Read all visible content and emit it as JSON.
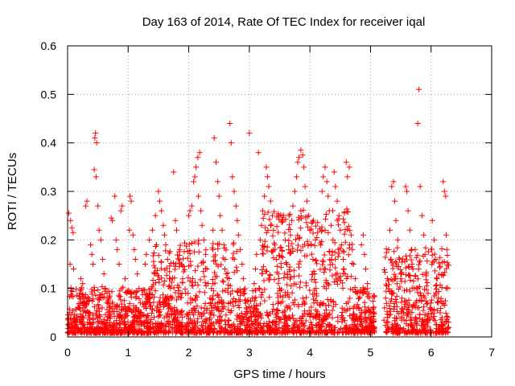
{
  "chart_data": {
    "type": "scatter",
    "title": "Day 163 of 2014, Rate Of TEC Index for receiver iqal",
    "xlabel": "GPS time / hours",
    "ylabel": "ROTI / TECUs",
    "xlim": [
      0,
      7
    ],
    "ylim": [
      0,
      0.6
    ],
    "x_ticks": [
      0,
      1,
      2,
      3,
      4,
      5,
      6,
      7
    ],
    "x_tick_labels": [
      "0",
      "1",
      "2",
      "3",
      "4",
      "5",
      "6",
      "7"
    ],
    "y_ticks": [
      0,
      0.1,
      0.2,
      0.3,
      0.4,
      0.5,
      0.6
    ],
    "y_tick_labels": [
      "0",
      "0.1",
      "0.2",
      "0.3",
      "0.4",
      "0.5",
      "0.6"
    ],
    "grid": true,
    "marker": "+",
    "color": "#ff0000",
    "series": [
      {
        "name": "ROTI",
        "points": [
          [
            0.02,
            0.255
          ],
          [
            0.05,
            0.24
          ],
          [
            0.07,
            0.225
          ],
          [
            0.09,
            0.215
          ],
          [
            0.04,
            0.15
          ],
          [
            0.1,
            0.14
          ],
          [
            0.03,
            0.05
          ],
          [
            0.06,
            0.03
          ],
          [
            0.08,
            0.02
          ],
          [
            0.12,
            0.01
          ],
          [
            0.15,
            0.04
          ],
          [
            0.18,
            0.06
          ],
          [
            0.2,
            0.09
          ],
          [
            0.22,
            0.12
          ],
          [
            0.25,
            0.11
          ],
          [
            0.28,
            0.08
          ],
          [
            0.3,
            0.05
          ],
          [
            0.33,
            0.03
          ],
          [
            0.3,
            0.27
          ],
          [
            0.32,
            0.28
          ],
          [
            0.38,
            0.19
          ],
          [
            0.4,
            0.17
          ],
          [
            0.42,
            0.15
          ],
          [
            0.45,
            0.41
          ],
          [
            0.46,
            0.42
          ],
          [
            0.48,
            0.4
          ],
          [
            0.44,
            0.345
          ],
          [
            0.47,
            0.33
          ],
          [
            0.5,
            0.27
          ],
          [
            0.52,
            0.22
          ],
          [
            0.55,
            0.2
          ],
          [
            0.58,
            0.16
          ],
          [
            0.6,
            0.13
          ],
          [
            0.62,
            0.1
          ],
          [
            0.65,
            0.07
          ],
          [
            0.68,
            0.05
          ],
          [
            0.7,
            0.03
          ],
          [
            0.72,
            0.245
          ],
          [
            0.74,
            0.24
          ],
          [
            0.78,
            0.29
          ],
          [
            0.8,
            0.2
          ],
          [
            0.82,
            0.18
          ],
          [
            0.85,
            0.15
          ],
          [
            0.88,
            0.26
          ],
          [
            0.9,
            0.27
          ],
          [
            0.95,
            0.12
          ],
          [
            0.98,
            0.09
          ],
          [
            1.0,
            0.06
          ],
          [
            1.03,
            0.29
          ],
          [
            1.05,
            0.28
          ],
          [
            1.02,
            0.22
          ],
          [
            1.08,
            0.21
          ],
          [
            1.1,
            0.18
          ],
          [
            1.12,
            0.16
          ],
          [
            1.15,
            0.13
          ],
          [
            1.18,
            0.1
          ],
          [
            1.2,
            0.07
          ],
          [
            1.22,
            0.05
          ],
          [
            1.25,
            0.03
          ],
          [
            1.28,
            0.15
          ],
          [
            1.3,
            0.17
          ],
          [
            1.35,
            0.2
          ],
          [
            1.4,
            0.22
          ],
          [
            1.45,
            0.25
          ],
          [
            1.5,
            0.3
          ],
          [
            1.52,
            0.28
          ],
          [
            1.55,
            0.26
          ],
          [
            1.58,
            0.23
          ],
          [
            1.6,
            0.21
          ],
          [
            1.62,
            0.19
          ],
          [
            1.65,
            0.16
          ],
          [
            1.68,
            0.12
          ],
          [
            1.7,
            0.1
          ],
          [
            1.72,
            0.08
          ],
          [
            1.75,
            0.34
          ],
          [
            1.78,
            0.24
          ],
          [
            1.8,
            0.22
          ],
          [
            1.85,
            0.18
          ],
          [
            1.88,
            0.15
          ],
          [
            1.9,
            0.12
          ],
          [
            1.95,
            0.09
          ],
          [
            1.98,
            0.07
          ],
          [
            2.0,
            0.25
          ],
          [
            2.02,
            0.26
          ],
          [
            2.05,
            0.27
          ],
          [
            2.08,
            0.32
          ],
          [
            2.1,
            0.33
          ],
          [
            2.12,
            0.35
          ],
          [
            2.15,
            0.37
          ],
          [
            2.18,
            0.38
          ],
          [
            2.16,
            0.29
          ],
          [
            2.2,
            0.26
          ],
          [
            2.22,
            0.23
          ],
          [
            2.25,
            0.2
          ],
          [
            2.28,
            0.17
          ],
          [
            2.3,
            0.14
          ],
          [
            2.32,
            0.11
          ],
          [
            2.35,
            0.08
          ],
          [
            2.38,
            0.05
          ],
          [
            2.4,
            0.22
          ],
          [
            2.42,
            0.41
          ],
          [
            2.45,
            0.36
          ],
          [
            2.48,
            0.32
          ],
          [
            2.5,
            0.29
          ],
          [
            2.52,
            0.25
          ],
          [
            2.55,
            0.22
          ],
          [
            2.58,
            0.19
          ],
          [
            2.6,
            0.16
          ],
          [
            2.62,
            0.13
          ],
          [
            2.65,
            0.1
          ],
          [
            2.68,
            0.44
          ],
          [
            2.7,
            0.4
          ],
          [
            2.72,
            0.33
          ],
          [
            2.75,
            0.3
          ],
          [
            2.78,
            0.27
          ],
          [
            2.8,
            0.24
          ],
          [
            2.82,
            0.21
          ],
          [
            2.85,
            0.18
          ],
          [
            2.88,
            0.15
          ],
          [
            2.9,
            0.12
          ],
          [
            2.92,
            0.09
          ],
          [
            2.95,
            0.06
          ],
          [
            3.0,
            0.42
          ],
          [
            3.02,
            0.05
          ],
          [
            3.05,
            0.08
          ],
          [
            3.08,
            0.11
          ],
          [
            3.1,
            0.14
          ],
          [
            3.12,
            0.17
          ],
          [
            3.15,
            0.38
          ],
          [
            3.18,
            0.2
          ],
          [
            3.2,
            0.23
          ],
          [
            3.22,
            0.26
          ],
          [
            3.25,
            0.29
          ],
          [
            3.28,
            0.35
          ],
          [
            3.3,
            0.33
          ],
          [
            3.32,
            0.31
          ],
          [
            3.35,
            0.28
          ],
          [
            3.38,
            0.25
          ],
          [
            3.4,
            0.22
          ],
          [
            3.42,
            0.19
          ],
          [
            3.45,
            0.16
          ],
          [
            3.48,
            0.13
          ],
          [
            3.5,
            0.1
          ],
          [
            3.52,
            0.07
          ],
          [
            3.55,
            0.05
          ],
          [
            3.58,
            0.03
          ],
          [
            3.6,
            0.02
          ],
          [
            3.62,
            0.15
          ],
          [
            3.65,
            0.18
          ],
          [
            3.68,
            0.21
          ],
          [
            3.7,
            0.24
          ],
          [
            3.72,
            0.27
          ],
          [
            3.75,
            0.3
          ],
          [
            3.78,
            0.33
          ],
          [
            3.8,
            0.36
          ],
          [
            3.82,
            0.37
          ],
          [
            3.85,
            0.385
          ],
          [
            3.88,
            0.375
          ],
          [
            3.9,
            0.35
          ],
          [
            3.92,
            0.31
          ],
          [
            3.95,
            0.28
          ],
          [
            3.98,
            0.25
          ],
          [
            4.0,
            0.22
          ],
          [
            4.02,
            0.19
          ],
          [
            4.05,
            0.16
          ],
          [
            4.08,
            0.13
          ],
          [
            4.1,
            0.1
          ],
          [
            4.12,
            0.07
          ],
          [
            4.15,
            0.04
          ],
          [
            4.18,
            0.02
          ],
          [
            4.2,
            0.3
          ],
          [
            4.22,
            0.33
          ],
          [
            4.25,
            0.35
          ],
          [
            4.28,
            0.32
          ],
          [
            4.3,
            0.29
          ],
          [
            4.32,
            0.26
          ],
          [
            4.35,
            0.23
          ],
          [
            4.38,
            0.2
          ],
          [
            4.4,
            0.34
          ],
          [
            4.42,
            0.31
          ],
          [
            4.45,
            0.28
          ],
          [
            4.48,
            0.25
          ],
          [
            4.5,
            0.22
          ],
          [
            4.52,
            0.19
          ],
          [
            4.55,
            0.16
          ],
          [
            4.58,
            0.13
          ],
          [
            4.6,
            0.36
          ],
          [
            4.62,
            0.33
          ],
          [
            4.65,
            0.35
          ],
          [
            4.68,
            0.21
          ],
          [
            4.7,
            0.18
          ],
          [
            4.72,
            0.15
          ],
          [
            4.75,
            0.12
          ],
          [
            4.78,
            0.09
          ],
          [
            4.8,
            0.06
          ],
          [
            4.82,
            0.04
          ],
          [
            4.85,
            0.19
          ],
          [
            4.88,
            0.21
          ],
          [
            4.9,
            0.17
          ],
          [
            4.92,
            0.14
          ],
          [
            4.95,
            0.11
          ],
          [
            4.98,
            0.08
          ],
          [
            5.0,
            0.05
          ],
          [
            5.02,
            0.03
          ],
          [
            5.05,
            0.06
          ],
          [
            5.25,
            0.08
          ],
          [
            5.28,
            0.12
          ],
          [
            5.3,
            0.18
          ],
          [
            5.32,
            0.22
          ],
          [
            5.35,
            0.31
          ],
          [
            5.38,
            0.32
          ],
          [
            5.4,
            0.28
          ],
          [
            5.42,
            0.24
          ],
          [
            5.45,
            0.2
          ],
          [
            5.48,
            0.16
          ],
          [
            5.5,
            0.12
          ],
          [
            5.52,
            0.08
          ],
          [
            5.55,
            0.05
          ],
          [
            5.58,
            0.31
          ],
          [
            5.6,
            0.3
          ],
          [
            5.62,
            0.26
          ],
          [
            5.65,
            0.22
          ],
          [
            5.68,
            0.18
          ],
          [
            5.7,
            0.14
          ],
          [
            5.72,
            0.1
          ],
          [
            5.75,
            0.07
          ],
          [
            5.78,
            0.44
          ],
          [
            5.8,
            0.51
          ],
          [
            5.82,
            0.31
          ],
          [
            5.85,
            0.25
          ],
          [
            5.88,
            0.21
          ],
          [
            5.9,
            0.17
          ],
          [
            5.92,
            0.13
          ],
          [
            5.95,
            0.09
          ],
          [
            5.98,
            0.06
          ],
          [
            6.0,
            0.04
          ],
          [
            6.02,
            0.24
          ],
          [
            6.05,
            0.2
          ],
          [
            6.08,
            0.16
          ],
          [
            6.1,
            0.12
          ],
          [
            6.12,
            0.08
          ],
          [
            6.15,
            0.05
          ],
          [
            6.18,
            0.03
          ],
          [
            6.2,
            0.32
          ],
          [
            6.22,
            0.3
          ],
          [
            6.24,
            0.29
          ],
          [
            6.25,
            0.21
          ],
          [
            6.26,
            0.18
          ],
          [
            6.27,
            0.1
          ],
          [
            6.28,
            0.04
          ]
        ]
      }
    ]
  }
}
